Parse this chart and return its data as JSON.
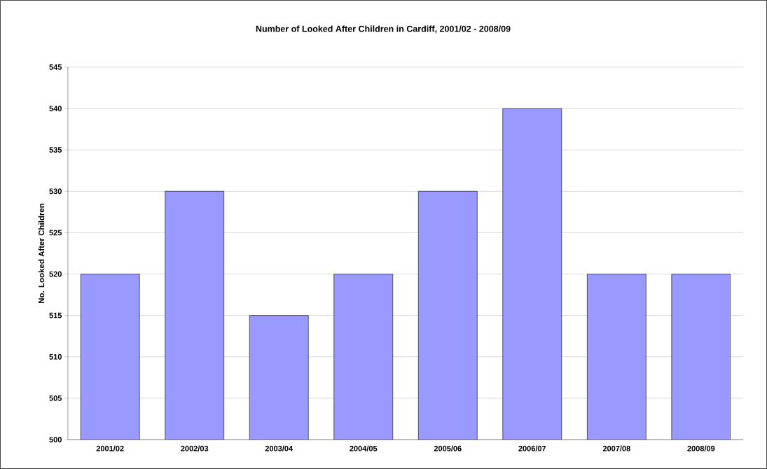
{
  "chart_data": {
    "type": "bar",
    "title": "Number of Looked After Children in Cardiff, 2001/02 - 2008/09",
    "ylabel": "No. Looked After Children",
    "categories": [
      "2001/02",
      "2002/03",
      "2003/04",
      "2004/05",
      "2005/06",
      "2006/07",
      "2007/08",
      "2008/09"
    ],
    "values": [
      520,
      530,
      515,
      520,
      530,
      540,
      520,
      520
    ],
    "color": "#9999ff",
    "ylim": [
      500,
      545
    ],
    "yticks": [
      500,
      505,
      510,
      515,
      520,
      525,
      530,
      535,
      540,
      545
    ],
    "grid": "y"
  }
}
